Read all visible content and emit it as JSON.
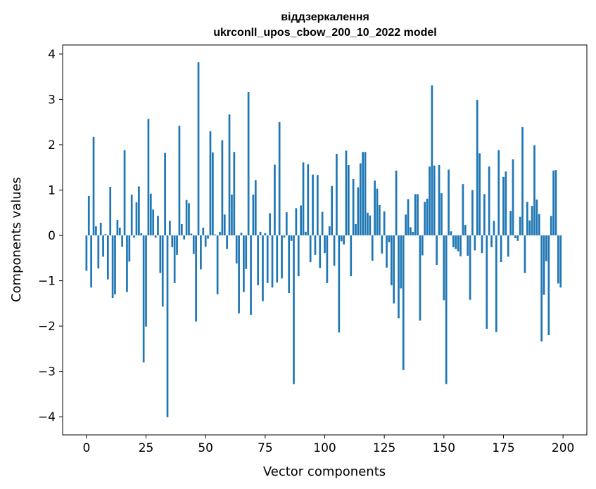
{
  "chart_data": {
    "type": "bar",
    "title_line1": "віддзеркалення",
    "title_line2": "ukrconll_upos_cbow_200_10_2022 model",
    "xlabel": "Vector components",
    "ylabel": "Components values",
    "xlim": [
      -10,
      210
    ],
    "ylim": [
      -4.4,
      4.2
    ],
    "xticks": [
      0,
      25,
      50,
      75,
      100,
      125,
      150,
      175,
      200
    ],
    "yticks": [
      -4,
      -3,
      -2,
      -1,
      0,
      1,
      2,
      3,
      4
    ],
    "ytick_labels": [
      "−4",
      "−3",
      "−2",
      "−1",
      "0",
      "1",
      "2",
      "3",
      "4"
    ],
    "grid": false,
    "bar_color": "#1f77b4",
    "x": [
      0,
      1,
      2,
      3,
      4,
      5,
      6,
      7,
      8,
      9,
      10,
      11,
      12,
      13,
      14,
      15,
      16,
      17,
      18,
      19,
      20,
      21,
      22,
      23,
      24,
      25,
      26,
      27,
      28,
      29,
      30,
      31,
      32,
      33,
      34,
      35,
      36,
      37,
      38,
      39,
      40,
      41,
      42,
      43,
      44,
      45,
      46,
      47,
      48,
      49,
      50,
      51,
      52,
      53,
      54,
      55,
      56,
      57,
      58,
      59,
      60,
      61,
      62,
      63,
      64,
      65,
      66,
      67,
      68,
      69,
      70,
      71,
      72,
      73,
      74,
      75,
      76,
      77,
      78,
      79,
      80,
      81,
      82,
      83,
      84,
      85,
      86,
      87,
      88,
      89,
      90,
      91,
      92,
      93,
      94,
      95,
      96,
      97,
      98,
      99,
      100,
      101,
      102,
      103,
      104,
      105,
      106,
      107,
      108,
      109,
      110,
      111,
      112,
      113,
      114,
      115,
      116,
      117,
      118,
      119,
      120,
      121,
      122,
      123,
      124,
      125,
      126,
      127,
      128,
      129,
      130,
      131,
      132,
      133,
      134,
      135,
      136,
      137,
      138,
      139,
      140,
      141,
      142,
      143,
      144,
      145,
      146,
      147,
      148,
      149,
      150,
      151,
      152,
      153,
      154,
      155,
      156,
      157,
      158,
      159,
      160,
      161,
      162,
      163,
      164,
      165,
      166,
      167,
      168,
      169,
      170,
      171,
      172,
      173,
      174,
      175,
      176,
      177,
      178,
      179,
      180,
      181,
      182,
      183,
      184,
      185,
      186,
      187,
      188,
      189,
      190,
      191,
      192,
      193,
      194,
      195,
      196,
      197,
      198,
      199
    ],
    "values": [
      -0.78,
      0.87,
      -1.15,
      2.17,
      0.2,
      -0.73,
      0.28,
      -0.47,
      0.03,
      -0.97,
      1.07,
      -1.38,
      -1.3,
      0.34,
      0.17,
      -0.25,
      1.88,
      -1.25,
      -0.58,
      0.9,
      -0.05,
      0.73,
      1.08,
      0.05,
      -2.8,
      -2.01,
      2.57,
      0.92,
      0.57,
      -0.05,
      0.43,
      -0.83,
      -1.57,
      1.82,
      -4.01,
      0.32,
      -0.26,
      -1.05,
      -0.43,
      2.42,
      0.25,
      -0.09,
      0.78,
      0.71,
      0.04,
      -0.41,
      -1.9,
      3.82,
      -0.75,
      0.17,
      -0.25,
      -0.07,
      2.3,
      1.83,
      0.02,
      -1.3,
      0.08,
      2.1,
      0.46,
      -0.3,
      2.67,
      0.9,
      1.84,
      -0.62,
      -1.72,
      0.06,
      -1.25,
      -0.74,
      3.16,
      -1.75,
      0.9,
      1.22,
      -1.1,
      0.08,
      -1.45,
      0.05,
      -1.05,
      0.49,
      -1.15,
      1.56,
      -1.04,
      2.5,
      -0.95,
      -0.05,
      0.51,
      -1.27,
      -0.12,
      -3.28,
      0.6,
      -0.9,
      0.66,
      1.61,
      0.08,
      1.57,
      -0.59,
      1.34,
      -0.43,
      1.33,
      -0.72,
      0.52,
      -0.39,
      -1.05,
      0.2,
      1.09,
      -0.67,
      1.8,
      -2.14,
      -0.13,
      -0.2,
      1.87,
      1.55,
      -0.9,
      1.24,
      0.25,
      1.06,
      1.59,
      1.84,
      1.84,
      0.5,
      0.44,
      -0.56,
      1.21,
      1.03,
      0.67,
      -0.4,
      0.53,
      -0.71,
      -0.15,
      -1.1,
      -1.5,
      1.43,
      -1.83,
      -1.17,
      -2.97,
      0.46,
      0.8,
      0.18,
      0.08,
      0.91,
      0.91,
      -1.88,
      -0.44,
      0.74,
      0.81,
      1.52,
      3.31,
      1.54,
      -0.65,
      1.55,
      0.93,
      -1.43,
      -3.28,
      1.45,
      0.09,
      -0.26,
      -0.3,
      -0.35,
      -0.46,
      1.13,
      0.23,
      -0.45,
      -1.42,
      1.0,
      -0.33,
      2.99,
      1.81,
      -0.39,
      0.91,
      -2.06,
      1.52,
      -0.26,
      0.32,
      -2.13,
      1.88,
      -0.59,
      1.29,
      1.41,
      -0.47,
      0.54,
      1.68,
      -0.06,
      -0.12,
      0.41,
      2.39,
      -0.83,
      0.74,
      0.33,
      0.65,
      1.99,
      0.79,
      0.47,
      -2.34,
      -1.31,
      -0.57,
      -2.2,
      0.43,
      1.43,
      1.44,
      -1.06,
      -1.15
    ]
  }
}
